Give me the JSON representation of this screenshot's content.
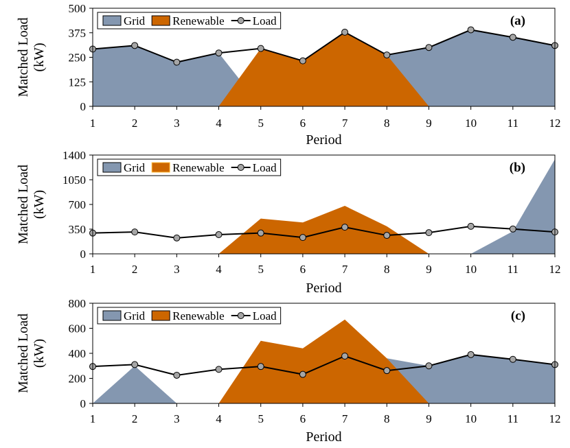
{
  "chart_data": [
    {
      "type": "area",
      "panel_label": "(a)",
      "xlabel": "Period",
      "ylabel_line1": "Matched Load",
      "ylabel_line2": "(kW)",
      "x": [
        1,
        2,
        3,
        4,
        5,
        6,
        7,
        8,
        9,
        10,
        11,
        12
      ],
      "x_tick_labels": [
        "1",
        "2",
        "3",
        "4",
        "5",
        "6",
        "7",
        "8",
        "9",
        "10",
        "11",
        "12"
      ],
      "ylim": [
        0,
        500
      ],
      "y_ticks": [
        0,
        125,
        250,
        375,
        500
      ],
      "y_tick_labels": [
        "0",
        "125",
        "250",
        "375",
        "500"
      ],
      "legend": [
        "Grid",
        "Renewable",
        "Load"
      ],
      "series": [
        {
          "name": "Grid",
          "kind": "area",
          "values": [
            292,
            310,
            225,
            272,
            0,
            0,
            0,
            262,
            300,
            390,
            352,
            310
          ]
        },
        {
          "name": "Renewable",
          "kind": "area",
          "values": [
            0,
            0,
            0,
            0,
            295,
            232,
            378,
            262,
            0,
            0,
            0,
            0
          ]
        },
        {
          "name": "Load",
          "kind": "line",
          "values": [
            292,
            310,
            225,
            272,
            295,
            232,
            378,
            262,
            300,
            390,
            352,
            310
          ]
        }
      ]
    },
    {
      "type": "area",
      "panel_label": "(b)",
      "xlabel": "Period",
      "ylabel_line1": "Matched Load",
      "ylabel_line2": "(kW)",
      "x": [
        1,
        2,
        3,
        4,
        5,
        6,
        7,
        8,
        9,
        10,
        11,
        12
      ],
      "x_tick_labels": [
        "1",
        "2",
        "3",
        "4",
        "5",
        "6",
        "7",
        "8",
        "9",
        "10",
        "11",
        "12"
      ],
      "ylim": [
        0,
        1400
      ],
      "y_ticks": [
        0,
        350,
        700,
        1050,
        1400
      ],
      "y_tick_labels": [
        "0",
        "350",
        "700",
        "1050",
        "1400"
      ],
      "legend": [
        "Grid",
        "Renewable",
        "Load"
      ],
      "series": [
        {
          "name": "Grid",
          "kind": "area",
          "values": [
            0,
            0,
            0,
            0,
            0,
            0,
            0,
            0,
            0,
            0,
            320,
            1340
          ]
        },
        {
          "name": "Renewable",
          "kind": "area",
          "values": [
            0,
            0,
            0,
            0,
            500,
            445,
            680,
            390,
            0,
            0,
            0,
            0
          ]
        },
        {
          "name": "Load",
          "kind": "line",
          "values": [
            295,
            310,
            225,
            272,
            295,
            232,
            378,
            262,
            300,
            390,
            352,
            310
          ]
        }
      ]
    },
    {
      "type": "area",
      "panel_label": "(c)",
      "xlabel": "Period",
      "ylabel_line1": "Matched Load",
      "ylabel_line2": "(kW)",
      "x": [
        1,
        2,
        3,
        4,
        5,
        6,
        7,
        8,
        9,
        10,
        11,
        12
      ],
      "x_tick_labels": [
        "1",
        "2",
        "3",
        "4",
        "5",
        "6",
        "7",
        "8",
        "9",
        "10",
        "11",
        "12"
      ],
      "ylim": [
        0,
        800
      ],
      "y_ticks": [
        0,
        200,
        400,
        600,
        800
      ],
      "y_tick_labels": [
        "0",
        "200",
        "400",
        "600",
        "800"
      ],
      "legend": [
        "Grid",
        "Renewable",
        "Load"
      ],
      "series": [
        {
          "name": "Grid",
          "kind": "area",
          "values": [
            0,
            300,
            0,
            0,
            0,
            0,
            0,
            360,
            300,
            390,
            352,
            310
          ]
        },
        {
          "name": "Renewable",
          "kind": "area",
          "values": [
            0,
            0,
            0,
            0,
            500,
            440,
            670,
            360,
            0,
            0,
            0,
            0
          ]
        },
        {
          "name": "Load",
          "kind": "line",
          "values": [
            295,
            310,
            225,
            272,
            295,
            232,
            378,
            262,
            300,
            390,
            352,
            310
          ]
        }
      ]
    }
  ],
  "colors": {
    "grid": "#8497b0",
    "renewable": "#cc6600",
    "renewable_legend_edge": "#ffbf40",
    "load_line": "#000000",
    "load_marker": "#a6a6a6"
  }
}
